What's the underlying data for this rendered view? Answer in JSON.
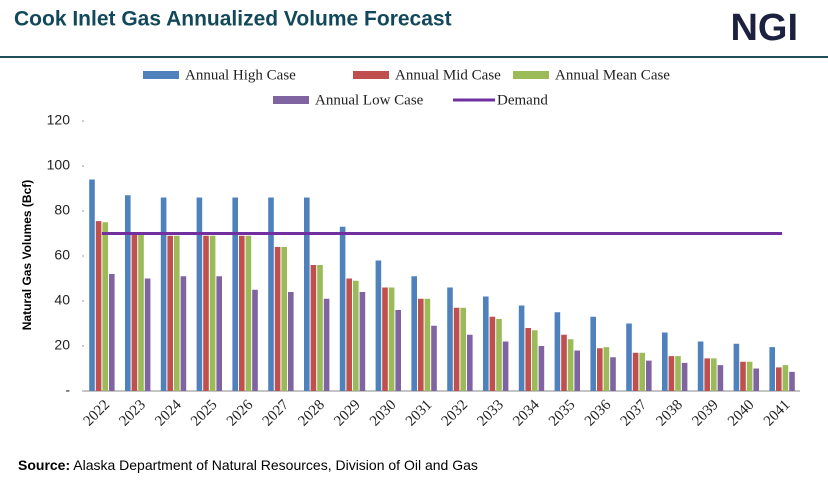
{
  "header": {
    "logo": "NGI"
  },
  "footer": {
    "source_label": "Source:",
    "source": "Alaska Department of Natural Resources, Division of Oil and Gas"
  },
  "chart_data": {
    "type": "bar",
    "title": "Cook Inlet Gas Annualized Volume Forecast",
    "y_label": "Natural Gas Volumes (Bcf)",
    "categories": [
      "2022",
      "2023",
      "2024",
      "2025",
      "2026",
      "2027",
      "2028",
      "2029",
      "2030",
      "2031",
      "2032",
      "2033",
      "2034",
      "2035",
      "2036",
      "2037",
      "2038",
      "2039",
      "2040",
      "2041"
    ],
    "ylim": [
      0,
      120
    ],
    "yticks": [
      {
        "value": 0,
        "label": "-"
      },
      20,
      40,
      60,
      80,
      100,
      120
    ],
    "series": [
      {
        "name": "Annual High Case",
        "color": "#4f81bd",
        "values": [
          94,
          87,
          86,
          86,
          86,
          86,
          86,
          73,
          58,
          51,
          46,
          42,
          38,
          35,
          33,
          30,
          26,
          22,
          21,
          19.5
        ]
      },
      {
        "name": "Annual Mid Case",
        "color": "#c0504d",
        "values": [
          75.5,
          70,
          69,
          69,
          69,
          64,
          56,
          50,
          46,
          41,
          37,
          33,
          28,
          25,
          19,
          17,
          15.5,
          14.5,
          13,
          10.5
        ]
      },
      {
        "name": "Annual Mean Case",
        "color": "#9bbb59",
        "values": [
          75,
          70,
          69,
          69,
          69,
          64,
          56,
          49,
          46,
          41,
          37,
          32,
          27,
          23,
          19.5,
          17,
          15.5,
          14.5,
          13,
          11.5
        ]
      },
      {
        "name": "Annual Low Case",
        "color": "#8064a2",
        "values": [
          52,
          50,
          51,
          51,
          45,
          44,
          41,
          44,
          36,
          29,
          25,
          22,
          20,
          18,
          15,
          13.5,
          12.5,
          11.5,
          10,
          8.5
        ]
      },
      {
        "name": "Demand",
        "color": "#7030a0",
        "type": "line",
        "values": [
          70,
          70,
          70,
          70,
          70,
          70,
          70,
          70,
          70,
          70,
          70,
          70,
          70,
          70,
          70,
          70,
          70,
          70,
          70,
          70
        ]
      }
    ]
  }
}
